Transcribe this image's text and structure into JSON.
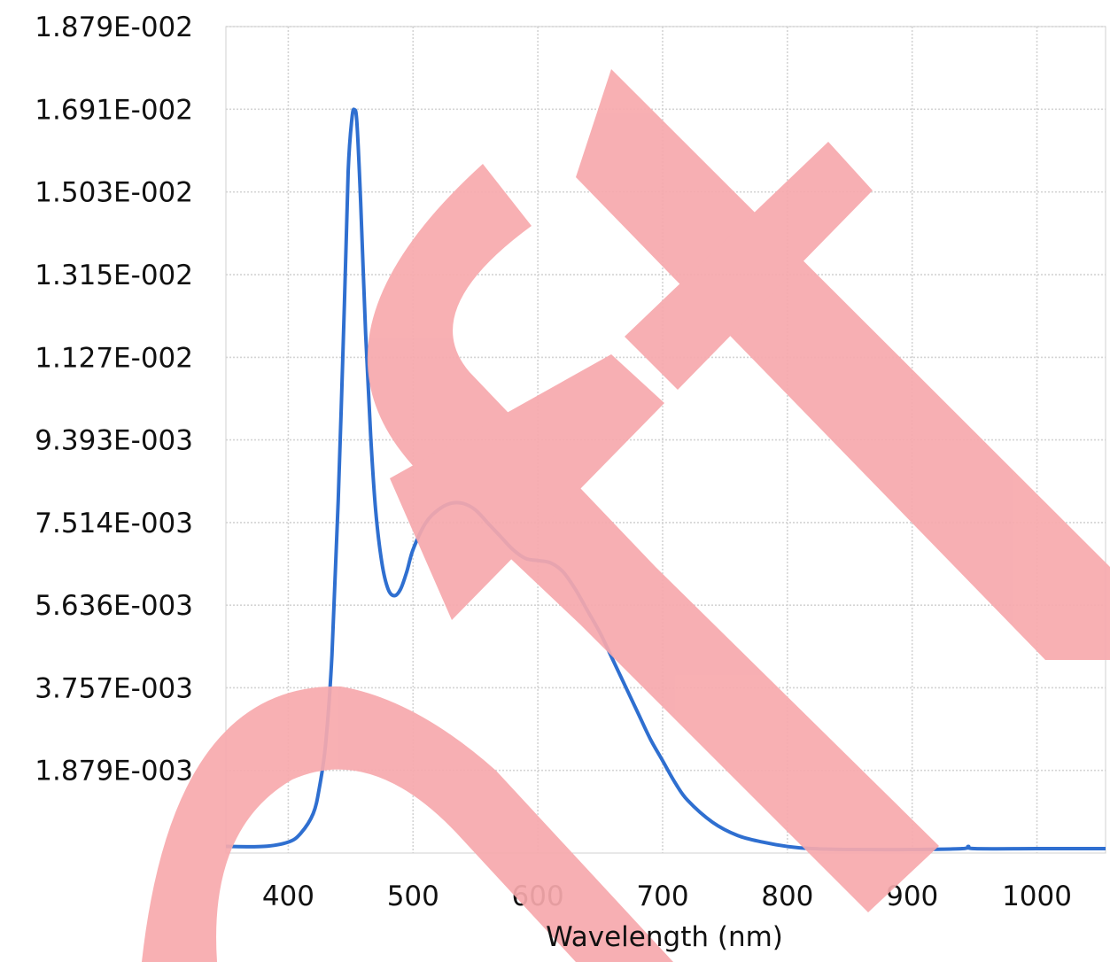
{
  "chart_data": {
    "type": "line",
    "title": "",
    "xlabel": "Wavelength (nm)",
    "ylabel": "",
    "xlim": [
      350,
      1055
    ],
    "ylim": [
      0,
      0.01879
    ],
    "x_ticks": [
      400,
      500,
      600,
      700,
      800,
      900,
      1000
    ],
    "x_tick_labels": [
      "400",
      "500",
      "600",
      "700",
      "800",
      "900",
      "1000"
    ],
    "y_ticks": [
      0.001879,
      0.003757,
      0.005636,
      0.007514,
      0.009393,
      0.01127,
      0.01315,
      0.01503,
      0.01691,
      0.01879
    ],
    "y_tick_labels": [
      "1.879E-003",
      "3.757E-003",
      "5.636E-003",
      "7.514E-003",
      "9.393E-003",
      "1.127E-002",
      "1.315E-002",
      "1.503E-002",
      "1.691E-002",
      "1.879E-002"
    ],
    "grid": true,
    "legend": "none",
    "series": [
      {
        "color": "#2f6fd0",
        "x": [
          350,
          380,
          400,
          410,
          420,
          425,
          430,
          435,
          440,
          445,
          448,
          451,
          453,
          455,
          458,
          462,
          466,
          470,
          475,
          480,
          485,
          490,
          495,
          500,
          510,
          520,
          530,
          540,
          550,
          560,
          570,
          580,
          590,
          600,
          610,
          620,
          630,
          640,
          650,
          660,
          670,
          680,
          690,
          700,
          710,
          720,
          740,
          760,
          780,
          800,
          820,
          850,
          900,
          940,
          945,
          950,
          1000,
          1055
        ],
        "y": [
          0.00015,
          0.00015,
          0.00025,
          0.00045,
          0.0009,
          0.0015,
          0.0025,
          0.0045,
          0.008,
          0.0125,
          0.0155,
          0.0167,
          0.0169,
          0.0166,
          0.0148,
          0.0118,
          0.0095,
          0.0078,
          0.0066,
          0.006,
          0.00585,
          0.006,
          0.0064,
          0.0069,
          0.0075,
          0.0078,
          0.00795,
          0.00795,
          0.0078,
          0.0075,
          0.0072,
          0.0069,
          0.0067,
          0.00665,
          0.0066,
          0.0064,
          0.006,
          0.0055,
          0.005,
          0.0044,
          0.0038,
          0.0032,
          0.0026,
          0.0021,
          0.0016,
          0.0012,
          0.0007,
          0.0004,
          0.00025,
          0.00015,
          0.0001,
          8e-05,
          8e-05,
          0.0001,
          0.00015,
          0.0001,
          0.0001,
          0.0001
        ]
      }
    ]
  },
  "watermark": {
    "text": "CX",
    "color": "#f7a9ad"
  }
}
